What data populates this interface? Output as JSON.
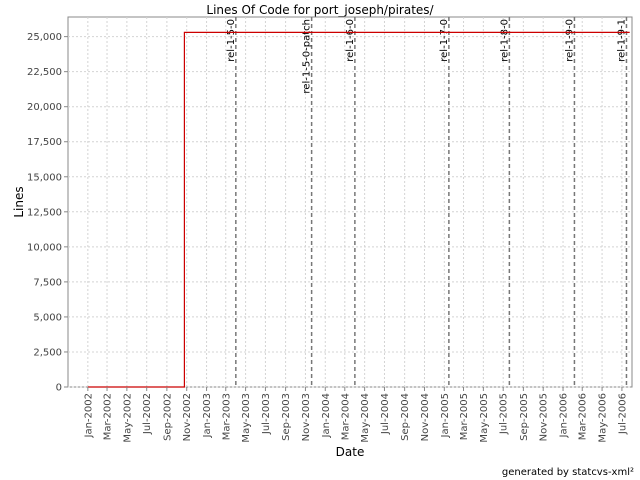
{
  "chart_data": {
    "type": "line",
    "title": "Lines Of Code for port_joseph/pirates/",
    "xlabel": "Date",
    "ylabel": "Lines",
    "footer": "generated by statcvs-xml²",
    "x_ticks": [
      "Jan-2002",
      "Mar-2002",
      "May-2002",
      "Jul-2002",
      "Sep-2002",
      "Nov-2002",
      "Jan-2003",
      "Mar-2003",
      "May-2003",
      "Jul-2003",
      "Sep-2003",
      "Nov-2003",
      "Jan-2004",
      "Mar-2004",
      "May-2004",
      "Jul-2004",
      "Sep-2004",
      "Nov-2004",
      "Jan-2005",
      "Mar-2005",
      "May-2005",
      "Jul-2005",
      "Sep-2005",
      "Nov-2005",
      "Jan-2006",
      "Mar-2006",
      "May-2006",
      "Jul-2006"
    ],
    "y_ticks": [
      0,
      2500,
      5000,
      7500,
      10000,
      12500,
      15000,
      17500,
      20000,
      22500,
      25000
    ],
    "y_tick_labels": [
      "0",
      "2,500",
      "5,000",
      "7,500",
      "10,000",
      "12,500",
      "15,000",
      "17,500",
      "20,000",
      "22,500",
      "25,000"
    ],
    "ylim": [
      0,
      26400
    ],
    "xlim": [
      "2001-11-01",
      "2006-08-01"
    ],
    "grid": true,
    "series": [
      {
        "color": "#cc0000",
        "points": [
          {
            "x": "2002-01-01",
            "y": 0
          },
          {
            "x": "2002-10-25",
            "y": 0
          },
          {
            "x": "2002-10-25",
            "y": 25300
          },
          {
            "x": "2006-07-25",
            "y": 25300
          }
        ]
      }
    ],
    "markers": [
      {
        "x": "2003-04-01",
        "label": "rel-1-5-0"
      },
      {
        "x": "2003-11-20",
        "label": "rel-1-5-0-patch"
      },
      {
        "x": "2004-04-01",
        "label": "rel-1-6-0"
      },
      {
        "x": "2005-01-15",
        "label": "rel-1-7-0"
      },
      {
        "x": "2005-07-20",
        "label": "rel-1-8-0"
      },
      {
        "x": "2006-02-05",
        "label": "rel-1-9-0"
      },
      {
        "x": "2006-07-15",
        "label": "rel-1-9-1"
      }
    ]
  }
}
